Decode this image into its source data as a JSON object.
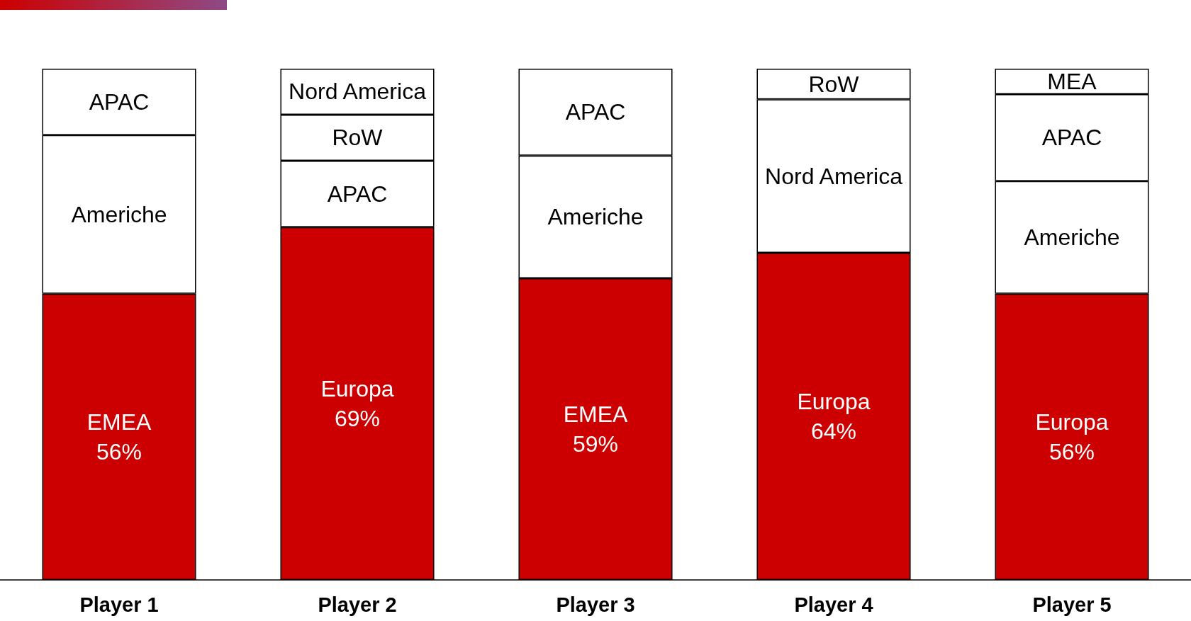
{
  "chart_data": {
    "type": "bar",
    "stacked": true,
    "categories": [
      "Player 1",
      "Player 2",
      "Player 3",
      "Player 4",
      "Player 5"
    ],
    "series": [
      {
        "color": "#cc0000",
        "values": [
          56,
          69,
          59,
          64,
          56
        ],
        "value_labels": [
          "EMEA\n56%",
          "Europa\n69%",
          "EMEA\n59%",
          "Europa\n64%",
          "Europa\n56%"
        ]
      },
      {
        "color": "#ffffff",
        "values": [
          31,
          13,
          24,
          30,
          22
        ],
        "value_labels": [
          "Americhe",
          "APAC",
          "Americhe",
          "Nord America",
          "Americhe"
        ]
      },
      {
        "color": "#ffffff",
        "values": [
          13,
          9,
          17,
          6,
          17
        ],
        "value_labels": [
          "APAC",
          "RoW",
          "APAC",
          "RoW",
          "APAC"
        ]
      },
      {
        "color": "#ffffff",
        "values": [
          null,
          9,
          null,
          null,
          5
        ],
        "value_labels": [
          null,
          "Nord America",
          null,
          null,
          "MEA"
        ]
      }
    ],
    "ylim": [
      0,
      100
    ],
    "tick_labels": "x"
  }
}
